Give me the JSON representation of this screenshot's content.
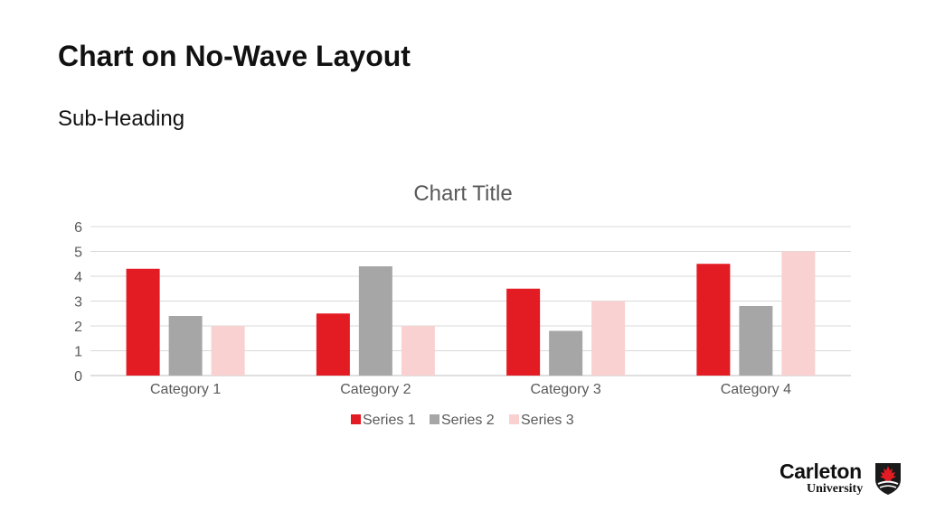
{
  "slide": {
    "title": "Chart on No-Wave Layout",
    "subtitle": "Sub-Heading"
  },
  "logo": {
    "name_line1": "Carleton",
    "name_line2": "University",
    "icon": "maple-leaf-shield-icon"
  },
  "chart_data": {
    "type": "bar",
    "title": "Chart Title",
    "xlabel": "",
    "ylabel": "",
    "categories": [
      "Category 1",
      "Category 2",
      "Category 3",
      "Category 4"
    ],
    "series": [
      {
        "name": "Series 1",
        "values": [
          4.3,
          2.5,
          3.5,
          4.5
        ],
        "color": "#e31b23"
      },
      {
        "name": "Series 2",
        "values": [
          2.4,
          4.4,
          1.8,
          2.8
        ],
        "color": "#a6a6a6"
      },
      {
        "name": "Series 3",
        "values": [
          2,
          2,
          3,
          5
        ],
        "color": "#f9d1d1"
      }
    ],
    "ylim": [
      0,
      6
    ],
    "yticks": [
      "0",
      "1",
      "2",
      "3",
      "4",
      "5",
      "6"
    ],
    "grid": true,
    "legend_position": "bottom"
  }
}
